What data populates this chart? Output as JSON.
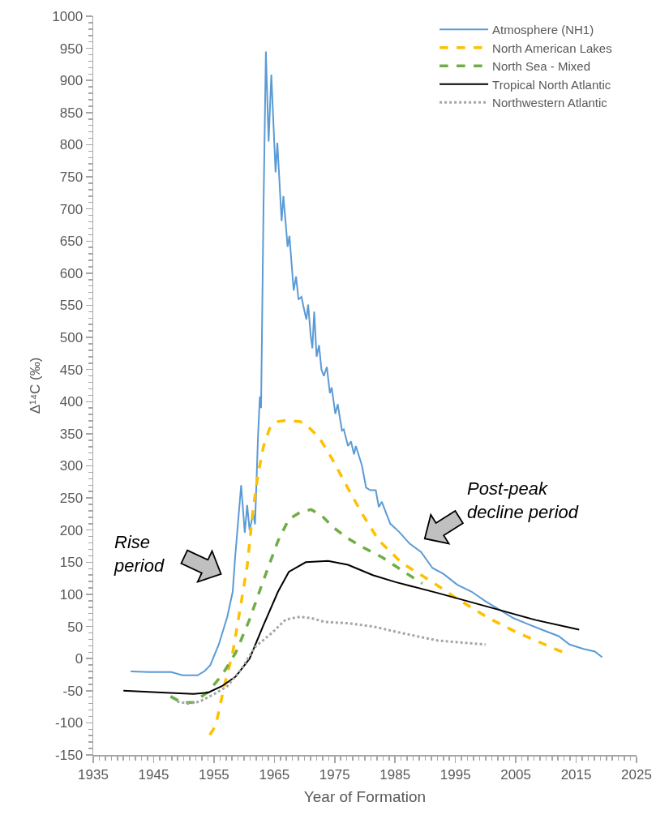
{
  "chart_data": {
    "type": "line",
    "xlabel": "Year of Formation",
    "ylabel": "Δ¹⁴C (‰)",
    "xlim": [
      1935,
      2025
    ],
    "xticks": [
      1935,
      1945,
      1955,
      1965,
      1975,
      1985,
      1995,
      2005,
      2015,
      2025
    ],
    "ylim": [
      -150,
      1000
    ],
    "yticks": [
      -150,
      -100,
      -50,
      0,
      50,
      100,
      150,
      200,
      250,
      300,
      350,
      400,
      450,
      500,
      550,
      600,
      650,
      700,
      750,
      800,
      850,
      900,
      950,
      1000
    ],
    "grid": false,
    "legend": "top right",
    "marker": "none",
    "annotations": [
      "Rise period",
      "Post-peak decline period"
    ],
    "series": [
      {
        "name": "Atmosphere (NH1)",
        "color": "#5b9bd5",
        "line_style": "solid",
        "x": [
          1941.2,
          1944.2,
          1947.9,
          1949.8,
          1952.3,
          1953.5,
          1954.4,
          1955.8,
          1957.2,
          1958.1,
          1958.5,
          1959.5,
          1960.1,
          1960.5,
          1960.9,
          1961.5,
          1961.8,
          1962.3,
          1962.6,
          1962.8,
          1963.2,
          1963.6,
          1964.05,
          1964.5,
          1965.2,
          1965.5,
          1966.2,
          1966.5,
          1967.2,
          1967.5,
          1968.2,
          1968.6,
          1969.0,
          1969.5,
          1969.8,
          1970.3,
          1970.6,
          1971.0,
          1971.3,
          1971.6,
          1972.0,
          1972.4,
          1972.8,
          1973.2,
          1973.7,
          1974.2,
          1974.5,
          1975.1,
          1975.5,
          1976.2,
          1976.5,
          1977.2,
          1977.7,
          1978.2,
          1978.5,
          1979.5,
          1980.2,
          1980.9,
          1981.8,
          1982.3,
          1982.8,
          1984.2,
          1985.7,
          1987.4,
          1989.3,
          1991.2,
          1993.0,
          1995.3,
          1997.7,
          2000.0,
          2002.3,
          2004.6,
          2006.9,
          2009.3,
          2012.1,
          2013.9,
          2016.2,
          2018.1,
          2019.3
        ],
        "values": [
          -20,
          -21,
          -21,
          -26,
          -26,
          -19,
          -10,
          22,
          65,
          104,
          157,
          270,
          196,
          239,
          200,
          226,
          209,
          347,
          408,
          390,
          700,
          945,
          805,
          909,
          757,
          803,
          681,
          720,
          641,
          658,
          573,
          595,
          559,
          563,
          549,
          528,
          551,
          505,
          483,
          540,
          470,
          488,
          450,
          440,
          454,
          413,
          422,
          381,
          396,
          355,
          357,
          331,
          338,
          318,
          331,
          301,
          266,
          262,
          262,
          236,
          244,
          210,
          197,
          179,
          166,
          141,
          132,
          115,
          104,
          89,
          76,
          63,
          54,
          45,
          35,
          22,
          15,
          11,
          2
        ]
      },
      {
        "name": "North American Lakes",
        "color": "#ffc000",
        "line_style": "dashed",
        "x": [
          1954.3,
          1955.3,
          1956.7,
          1958.1,
          1959.5,
          1960.5,
          1961.4,
          1962.3,
          1963.2,
          1964.2,
          1965.6,
          1967.0,
          1969.3,
          1970.7,
          1972.5,
          1974.5,
          1977.2,
          1979.5,
          1982.3,
          1986.1,
          1991.2,
          1995.3,
          2000.5,
          2005.1,
          2013.0
        ],
        "values": [
          -119,
          -104,
          -43,
          9,
          87,
          144,
          226,
          287,
          330,
          358,
          369,
          371,
          369,
          360,
          343,
          312,
          265,
          226,
          184,
          149,
          119,
          93,
          63,
          41,
          9
        ]
      },
      {
        "name": "North Sea - Mixed",
        "color": "#70ad47",
        "line_style": "dashed",
        "x": [
          1947.8,
          1949.8,
          1951.6,
          1954.0,
          1956.3,
          1958.6,
          1960.9,
          1963.2,
          1965.6,
          1967.4,
          1969.3,
          1971.1,
          1972.9,
          1974.8,
          1977.2,
          1979.5,
          1982.8,
          1987.0,
          1989.5
        ],
        "values": [
          -59,
          -69,
          -68,
          -52,
          -26,
          9,
          61,
          122,
          183,
          217,
          228,
          232,
          222,
          204,
          187,
          174,
          158,
          132,
          117
        ]
      },
      {
        "name": "Tropical North Atlantic",
        "color": "#000000",
        "line_style": "solid",
        "x": [
          1940.0,
          1947.0,
          1951.6,
          1954.0,
          1956.3,
          1958.6,
          1960.9,
          1963.2,
          1965.6,
          1967.4,
          1970.2,
          1973.9,
          1977.2,
          1981.3,
          1985.1,
          1992.1,
          2001.4,
          2008.3,
          2015.5
        ],
        "values": [
          -50,
          -53,
          -55,
          -53,
          -43,
          -28,
          0,
          52,
          104,
          135,
          150,
          152,
          146,
          130,
          119,
          102,
          78,
          60,
          45
        ]
      },
      {
        "name": "Northwestern Atlantic",
        "color": "#a5a5a5",
        "line_style": "dotted",
        "x": [
          1948.9,
          1950.7,
          1952.6,
          1954.9,
          1957.2,
          1959.5,
          1961.8,
          1964.6,
          1966.9,
          1969.3,
          1971.1,
          1973.4,
          1977.2,
          1981.3,
          1986.0,
          1992.1,
          2000.0
        ],
        "values": [
          -67,
          -70,
          -67,
          -56,
          -43,
          -17,
          18,
          40,
          61,
          65,
          63,
          57,
          55,
          50,
          40,
          28,
          22
        ]
      }
    ]
  }
}
